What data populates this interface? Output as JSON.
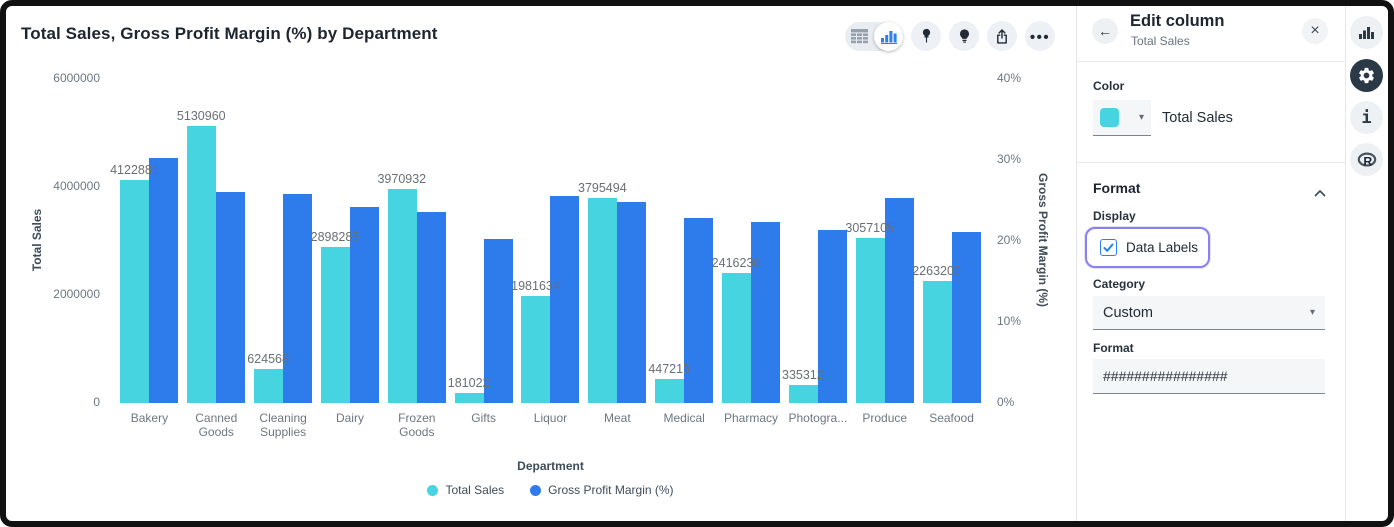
{
  "chart_data": {
    "type": "bar",
    "title": "Total Sales, Gross Profit Margin (%) by Department",
    "categories": [
      "Bakery",
      "Canned Goods",
      "Cleaning Supplies",
      "Dairy",
      "Frozen Goods",
      "Gifts",
      "Liquor",
      "Meat",
      "Medical",
      "Pharmacy",
      "Photogra...",
      "Produce",
      "Seafood"
    ],
    "series": [
      {
        "name": "Total Sales",
        "axis": "left",
        "color": "#45d4e0",
        "values": [
          4122881,
          5130960,
          624568,
          2898285,
          3970932,
          181022,
          1981634,
          3795494,
          447215,
          2416230,
          335312,
          3057105,
          2263205
        ],
        "labels": [
          "4122881",
          "5130960",
          "624568",
          "2898285",
          "3970932",
          "181022",
          "1981634",
          "3795494",
          "447215",
          "2416230",
          "335312",
          "3057105",
          "2263205"
        ]
      },
      {
        "name": "Gross Profit Margin (%)",
        "axis": "right",
        "color": "#2e7cec",
        "values": [
          30.3,
          26.1,
          25.8,
          24.2,
          23.6,
          20.2,
          25.5,
          24.8,
          22.9,
          22.4,
          21.3,
          25.3,
          21.1
        ]
      }
    ],
    "left_axis": {
      "title": "Total Sales",
      "ticks": [
        "6000000",
        "4000000",
        "2000000",
        "0"
      ],
      "tick_values": [
        6000000,
        4000000,
        2000000,
        0
      ],
      "min": 0,
      "max": 6000000
    },
    "right_axis": {
      "title": "Gross Profit Margin (%)",
      "ticks": [
        "40%",
        "30%",
        "20%",
        "10%",
        "0%"
      ],
      "tick_values": [
        40,
        30,
        20,
        10,
        0
      ],
      "min": 0,
      "max": 40
    },
    "xlabel": "Department",
    "grid": false,
    "legend_position": "bottom",
    "legend": [
      {
        "label": "Total Sales",
        "color": "#45d4e0"
      },
      {
        "label": "Gross Profit Margin (%)",
        "color": "#2e7cec"
      }
    ]
  },
  "toolbar": {
    "ellipsis": "•••"
  },
  "panel": {
    "title": "Edit column",
    "subtitle": "Total Sales",
    "back_glyph": "←",
    "close_glyph": "×",
    "color": {
      "label": "Color",
      "value": "Total Sales",
      "swatch_color": "#45d4e0",
      "caret": "▾"
    },
    "format_section": {
      "header": "Format",
      "display_label": "Display",
      "data_labels": {
        "label": "Data Labels",
        "checked": true
      },
      "category_label": "Category",
      "category_value": "Custom",
      "category_caret": "▾",
      "format_label": "Format",
      "format_value": "################"
    }
  },
  "right_rail": {
    "info_glyph": "i",
    "r_glyph": "R"
  },
  "colors": {
    "teal": "#45d4e0",
    "blue": "#2e7cec",
    "highlight": "#8a82ec",
    "checkbox_blue": "#2d7ff0",
    "dark_icon": "#2b3947"
  }
}
